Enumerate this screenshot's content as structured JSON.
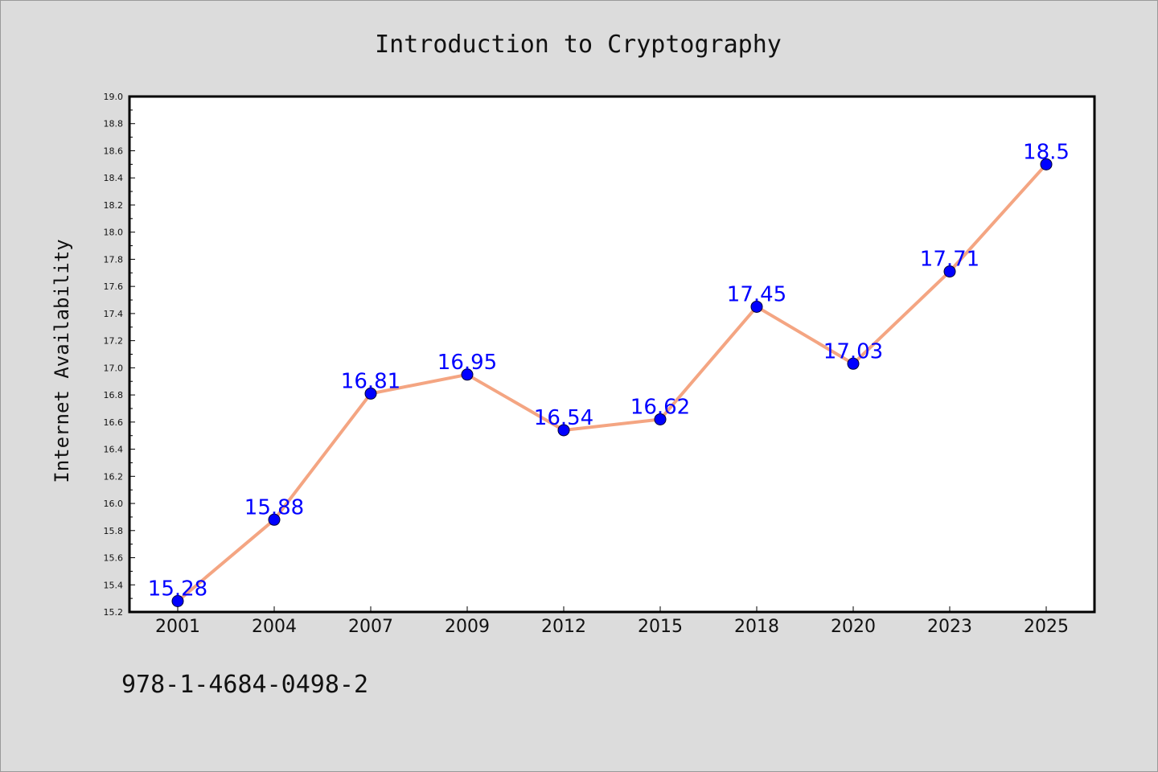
{
  "chart_data": {
    "type": "line",
    "title": "Introduction to Cryptography",
    "xlabel": "",
    "ylabel": "Internet Availability",
    "categories": [
      "2001",
      "2004",
      "2007",
      "2009",
      "2012",
      "2015",
      "2018",
      "2020",
      "2023",
      "2025"
    ],
    "series": [
      {
        "values": [
          15.28,
          15.88,
          16.81,
          16.95,
          16.54,
          16.62,
          17.45,
          17.03,
          17.71,
          18.5
        ],
        "labels": [
          "15.28",
          "15.88",
          "16.81",
          "16.95",
          "16.54",
          "16.62",
          "17.45",
          "17.03",
          "17.71",
          "18.5"
        ],
        "line_color": "#f4a582",
        "marker_color": "#0000ff"
      }
    ],
    "ylim": [
      15.2,
      19.0
    ],
    "yticks": [
      "15.2",
      "15.4",
      "15.6",
      "15.8",
      "16.0",
      "16.2",
      "16.4",
      "16.6",
      "16.8",
      "17.0",
      "17.2",
      "17.4",
      "17.6",
      "17.8",
      "18.0",
      "18.2",
      "18.4",
      "18.6",
      "18.8",
      "19.0"
    ],
    "grid": false,
    "legend": "none"
  },
  "footer": {
    "isbn": "978-1-4684-0498-2"
  },
  "colors": {
    "background": "#dcdcdc",
    "plot_background": "#ffffff",
    "axis": "#000000",
    "label_text": "#0000ff"
  }
}
